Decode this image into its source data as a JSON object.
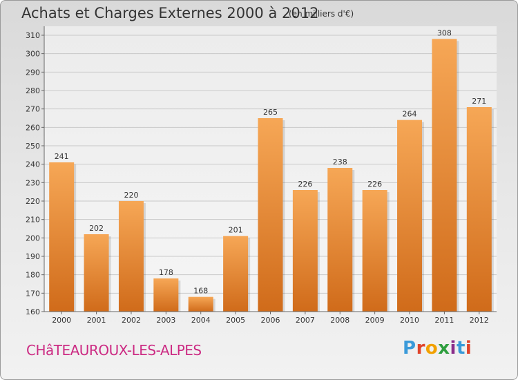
{
  "header": {
    "title": "Achats et Charges Externes 2000 à 2012",
    "unit": "(en milliers d'€)"
  },
  "footer": {
    "commune": "CHâTEAUROUX-LES-ALPES",
    "logo": "Proxiti",
    "logo_colors": [
      "#3a9ad9",
      "#e0432a",
      "#f2a100",
      "#2e9e3e",
      "#8a2d8a",
      "#3a9ad9",
      "#e0432a"
    ]
  },
  "chart_data": {
    "type": "bar",
    "title": "Achats et Charges Externes 2000 à 2012",
    "unit": "(en milliers d'€)",
    "categories": [
      "2000",
      "2001",
      "2002",
      "2003",
      "2004",
      "2005",
      "2006",
      "2007",
      "2008",
      "2009",
      "2010",
      "2011",
      "2012"
    ],
    "values": [
      241,
      202,
      220,
      178,
      168,
      201,
      265,
      226,
      238,
      226,
      264,
      308,
      271
    ],
    "ylim": [
      160,
      310
    ],
    "yticks": [
      160,
      170,
      180,
      190,
      200,
      210,
      220,
      230,
      240,
      250,
      260,
      270,
      280,
      290,
      300,
      310
    ],
    "grid": true,
    "bar_color": "#f0902f",
    "bar_color_dark": "#d2701c"
  }
}
